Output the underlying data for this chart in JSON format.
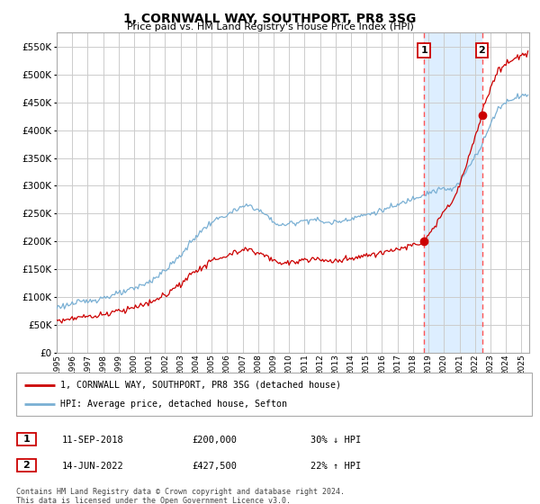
{
  "title": "1, CORNWALL WAY, SOUTHPORT, PR8 3SG",
  "subtitle": "Price paid vs. HM Land Registry's House Price Index (HPI)",
  "hpi_color": "#7ab0d4",
  "price_color": "#cc0000",
  "shade_color": "#ddeeff",
  "dashed_color": "#ff5555",
  "background_color": "#ffffff",
  "grid_color": "#cccccc",
  "legend_label_price": "1, CORNWALL WAY, SOUTHPORT, PR8 3SG (detached house)",
  "legend_label_hpi": "HPI: Average price, detached house, Sefton",
  "transaction1_date": "11-SEP-2018",
  "transaction1_price": "£200,000",
  "transaction1_pct": "30% ↓ HPI",
  "transaction2_date": "14-JUN-2022",
  "transaction2_price": "£427,500",
  "transaction2_pct": "22% ↑ HPI",
  "footnote": "Contains HM Land Registry data © Crown copyright and database right 2024.\nThis data is licensed under the Open Government Licence v3.0.",
  "transaction1_year": 2018.71,
  "transaction2_year": 2022.45,
  "yticks": [
    0,
    50000,
    100000,
    150000,
    200000,
    250000,
    300000,
    350000,
    400000,
    450000,
    500000,
    550000
  ],
  "ylim": [
    0,
    575000
  ],
  "xlim": [
    1995.0,
    2025.5
  ]
}
